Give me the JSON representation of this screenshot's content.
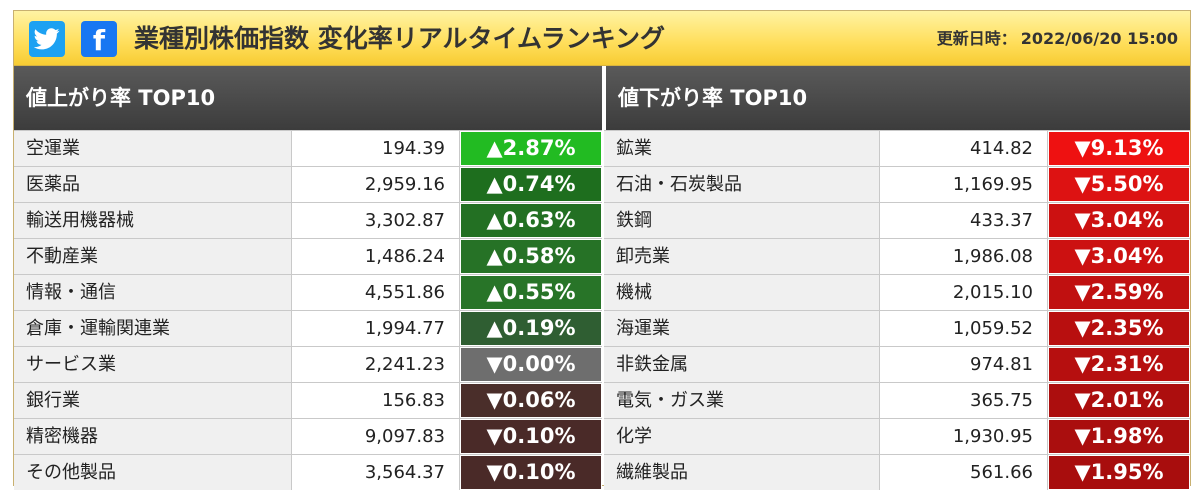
{
  "header": {
    "title": "業種別株価指数 変化率リアルタイムランキング",
    "updated_label": "更新日時：",
    "updated_value": "2022/06/20 15:00",
    "icons": [
      "twitter-icon",
      "facebook-icon"
    ]
  },
  "gainers": {
    "title": "値上がり率 TOP10",
    "rows": [
      {
        "name": "空運業",
        "value": "194.39",
        "change": "▲2.87%",
        "color": "#22bb22"
      },
      {
        "name": "医薬品",
        "value": "2,959.16",
        "change": "▲0.74%",
        "color": "#1e6e1e"
      },
      {
        "name": "輸送用機器械",
        "value": "3,302.87",
        "change": "▲0.63%",
        "color": "#237023"
      },
      {
        "name": "不動産業",
        "value": "1,486.24",
        "change": "▲0.58%",
        "color": "#267226"
      },
      {
        "name": "情報・通信",
        "value": "4,551.86",
        "change": "▲0.55%",
        "color": "#287428"
      },
      {
        "name": "倉庫・運輸関連業",
        "value": "1,994.77",
        "change": "▲0.19%",
        "color": "#2f5e32"
      },
      {
        "name": "サービス業",
        "value": "2,241.23",
        "change": "▼0.00%",
        "color": "#6e6e6e"
      },
      {
        "name": "銀行業",
        "value": "156.83",
        "change": "▼0.06%",
        "color": "#4a2e2a"
      },
      {
        "name": "精密機器",
        "value": "9,097.83",
        "change": "▼0.10%",
        "color": "#4a2a28"
      },
      {
        "name": "その他製品",
        "value": "3,564.37",
        "change": "▼0.10%",
        "color": "#4a2a28"
      }
    ]
  },
  "losers": {
    "title": "値下がり率 TOP10",
    "rows": [
      {
        "name": "鉱業",
        "value": "414.82",
        "change": "▼9.13%",
        "color": "#ee1111"
      },
      {
        "name": "石油・石炭製品",
        "value": "1,169.95",
        "change": "▼5.50%",
        "color": "#dd1212"
      },
      {
        "name": "鉄鋼",
        "value": "433.37",
        "change": "▼3.04%",
        "color": "#cc1111"
      },
      {
        "name": "卸売業",
        "value": "1,986.08",
        "change": "▼3.04%",
        "color": "#cc1111"
      },
      {
        "name": "機械",
        "value": "2,015.10",
        "change": "▼2.59%",
        "color": "#c01010"
      },
      {
        "name": "海運業",
        "value": "1,059.52",
        "change": "▼2.35%",
        "color": "#b80f0f"
      },
      {
        "name": "非鉄金属",
        "value": "974.81",
        "change": "▼2.31%",
        "color": "#b60f0f"
      },
      {
        "name": "電気・ガス業",
        "value": "365.75",
        "change": "▼2.01%",
        "color": "#ac0e0e"
      },
      {
        "name": "化学",
        "value": "1,930.95",
        "change": "▼1.98%",
        "color": "#aa0e0e"
      },
      {
        "name": "繊維製品",
        "value": "561.66",
        "change": "▼1.95%",
        "color": "#a80d0d"
      }
    ]
  }
}
